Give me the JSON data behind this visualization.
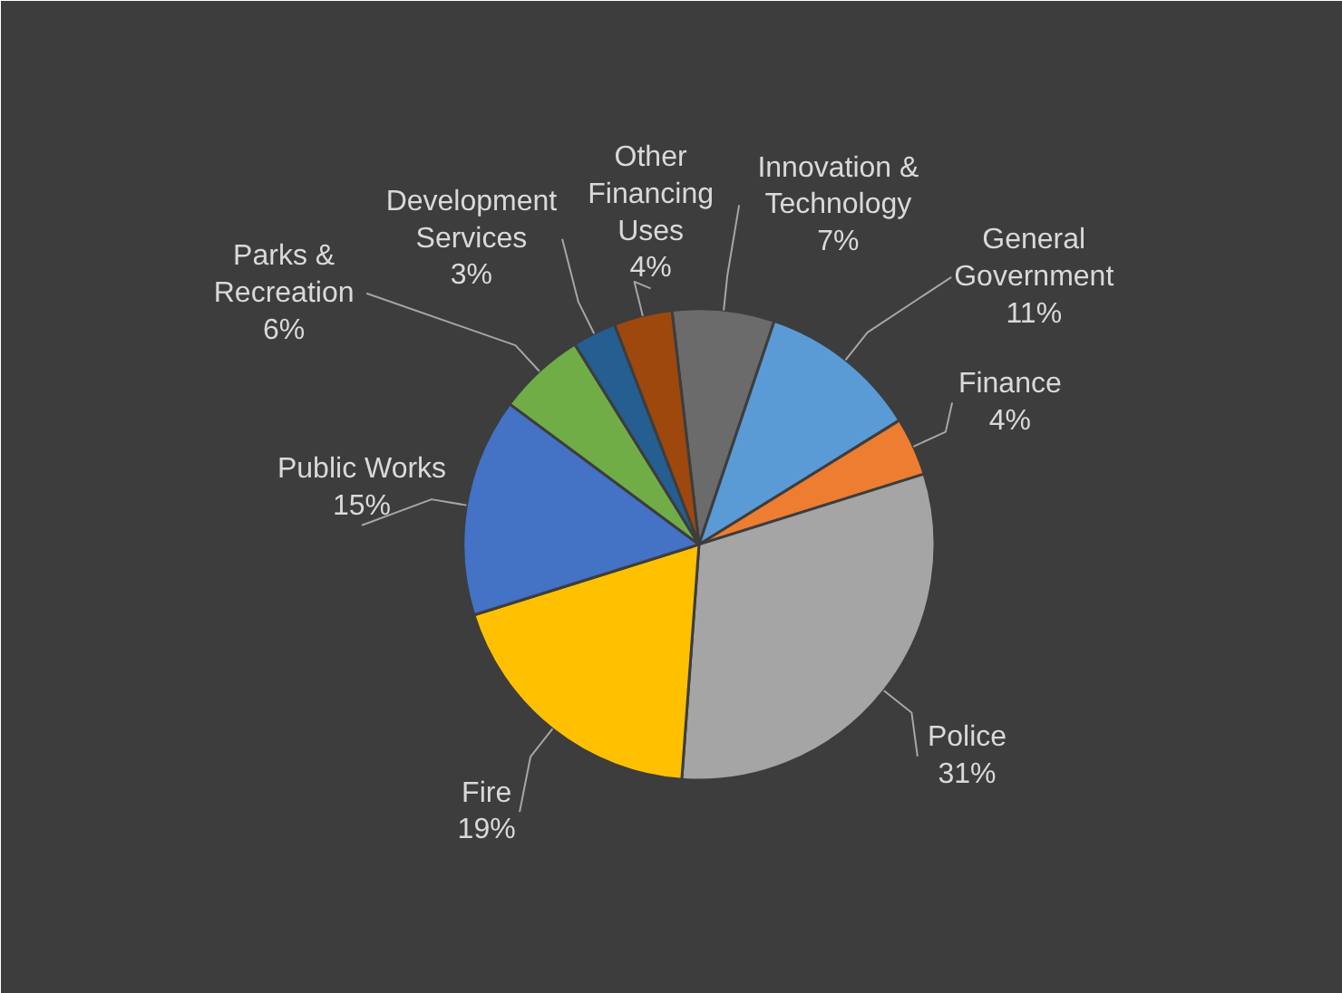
{
  "chart_data": {
    "type": "pie",
    "categories": [
      "Innovation & Technology",
      "General Government",
      "Finance",
      "Police",
      "Fire",
      "Public Works",
      "Parks & Recreation",
      "Development Services",
      "Other Financing Uses"
    ],
    "values": [
      7,
      11,
      4,
      31,
      19,
      15,
      6,
      3,
      4
    ],
    "value_labels": [
      "7%",
      "11%",
      "4%",
      "31%",
      "19%",
      "15%",
      "6%",
      "3%",
      "4%"
    ],
    "colors": [
      "#6b6b6b",
      "#5b9bd5",
      "#ed7d31",
      "#a5a5a5",
      "#ffc000",
      "#4472c4",
      "#70ad47",
      "#255e91",
      "#9e480e"
    ],
    "legend": false
  }
}
